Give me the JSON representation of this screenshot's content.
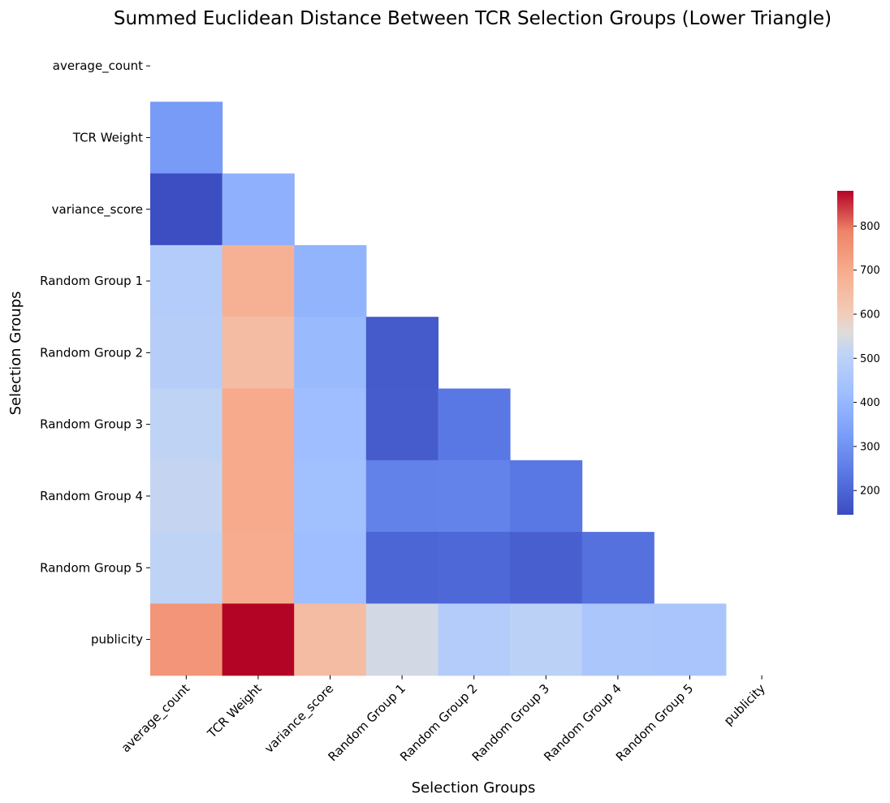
{
  "chart_data": {
    "type": "heatmap",
    "title": "Summed Euclidean Distance Between TCR Selection Groups (Lower Triangle)",
    "xlabel": "Selection Groups",
    "ylabel": "Selection Groups",
    "categories": [
      "average_count",
      "TCR Weight",
      "variance_score",
      "Random Group 1",
      "Random Group 2",
      "Random Group 3",
      "Random Group 4",
      "Random Group 5",
      "publicity"
    ],
    "masked": "upper triangle including diagonal",
    "matrix": [
      [
        null,
        null,
        null,
        null,
        null,
        null,
        null,
        null,
        null
      ],
      [
        320,
        null,
        null,
        null,
        null,
        null,
        null,
        null,
        null
      ],
      [
        150,
        380,
        null,
        null,
        null,
        null,
        null,
        null,
        null
      ],
      [
        480,
        680,
        390,
        null,
        null,
        null,
        null,
        null,
        null
      ],
      [
        485,
        650,
        410,
        175,
        null,
        null,
        null,
        null,
        null
      ],
      [
        510,
        700,
        420,
        180,
        240,
        null,
        null,
        null,
        null
      ],
      [
        520,
        700,
        430,
        260,
        265,
        240,
        null,
        null,
        null
      ],
      [
        510,
        695,
        420,
        200,
        205,
        185,
        225,
        null,
        null
      ],
      [
        750,
        880,
        650,
        540,
        480,
        500,
        455,
        450,
        null
      ]
    ],
    "colorbar": {
      "colormap": "coolwarm",
      "vmin": 145,
      "vmax": 880,
      "ticks": [
        200,
        300,
        400,
        500,
        600,
        700,
        800
      ]
    }
  }
}
